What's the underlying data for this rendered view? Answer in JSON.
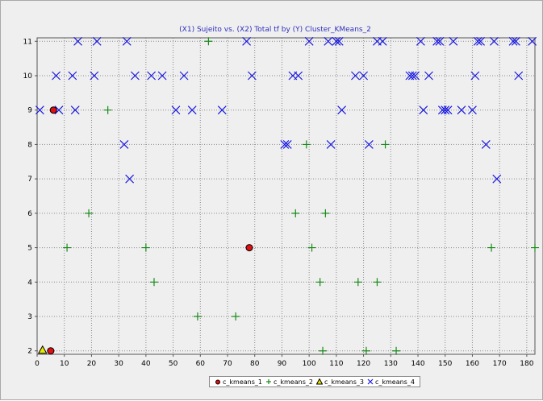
{
  "chart_data": {
    "type": "scatter",
    "title": "(X1) Sujeito vs. (X2) Total tf by (Y) Cluster_KMeans_2",
    "xlabel": "",
    "ylabel": "",
    "xlim": [
      0,
      183
    ],
    "ylim": [
      1.9,
      11.1
    ],
    "xticks": [
      0,
      10,
      20,
      30,
      40,
      50,
      60,
      70,
      80,
      90,
      100,
      110,
      120,
      130,
      140,
      150,
      160,
      170,
      180
    ],
    "yticks": [
      2,
      3,
      4,
      5,
      6,
      7,
      8,
      9,
      10,
      11
    ],
    "grid": true,
    "legend_position": "bottom",
    "series": [
      {
        "name": "c_kmeans_1",
        "marker": "circle",
        "color": "#e01010",
        "points": [
          [
            6,
            9
          ],
          [
            5,
            2
          ],
          [
            78,
            5
          ]
        ]
      },
      {
        "name": "c_kmeans_2",
        "marker": "plus",
        "color": "#1a8a1a",
        "points": [
          [
            63,
            11
          ],
          [
            26,
            9
          ],
          [
            99,
            8
          ],
          [
            128,
            8
          ],
          [
            19,
            6
          ],
          [
            95,
            6
          ],
          [
            106,
            6
          ],
          [
            11,
            5
          ],
          [
            40,
            5
          ],
          [
            101,
            5
          ],
          [
            167,
            5
          ],
          [
            183,
            5
          ],
          [
            43,
            4
          ],
          [
            104,
            4
          ],
          [
            118,
            4
          ],
          [
            125,
            4
          ],
          [
            59,
            3
          ],
          [
            73,
            3
          ],
          [
            105,
            2
          ],
          [
            121,
            2
          ],
          [
            132,
            2
          ]
        ]
      },
      {
        "name": "c_kmeans_3",
        "marker": "triangle",
        "color": "#e8e800",
        "points": [
          [
            2,
            2
          ]
        ]
      },
      {
        "name": "c_kmeans_4",
        "marker": "x",
        "color": "#1a1ae0",
        "points": [
          [
            15,
            11
          ],
          [
            22,
            11
          ],
          [
            33,
            11
          ],
          [
            77,
            11
          ],
          [
            100,
            11
          ],
          [
            107,
            11
          ],
          [
            110,
            11
          ],
          [
            111,
            11
          ],
          [
            125,
            11
          ],
          [
            127,
            11
          ],
          [
            141,
            11
          ],
          [
            147,
            11
          ],
          [
            148,
            11
          ],
          [
            153,
            11
          ],
          [
            162,
            11
          ],
          [
            163,
            11
          ],
          [
            168,
            11
          ],
          [
            175,
            11
          ],
          [
            176,
            11
          ],
          [
            182,
            11
          ],
          [
            7,
            10
          ],
          [
            13,
            10
          ],
          [
            21,
            10
          ],
          [
            36,
            10
          ],
          [
            42,
            10
          ],
          [
            46,
            10
          ],
          [
            54,
            10
          ],
          [
            79,
            10
          ],
          [
            94,
            10
          ],
          [
            96,
            10
          ],
          [
            117,
            10
          ],
          [
            120,
            10
          ],
          [
            137,
            10
          ],
          [
            138,
            10
          ],
          [
            139,
            10
          ],
          [
            144,
            10
          ],
          [
            161,
            10
          ],
          [
            177,
            10
          ],
          [
            1,
            9
          ],
          [
            8,
            9
          ],
          [
            14,
            9
          ],
          [
            51,
            9
          ],
          [
            57,
            9
          ],
          [
            68,
            9
          ],
          [
            112,
            9
          ],
          [
            142,
            9
          ],
          [
            149,
            9
          ],
          [
            150,
            9
          ],
          [
            151,
            9
          ],
          [
            156,
            9
          ],
          [
            160,
            9
          ],
          [
            32,
            8
          ],
          [
            91,
            8
          ],
          [
            92,
            8
          ],
          [
            108,
            8
          ],
          [
            122,
            8
          ],
          [
            165,
            8
          ],
          [
            34,
            7
          ],
          [
            169,
            7
          ]
        ]
      }
    ]
  }
}
